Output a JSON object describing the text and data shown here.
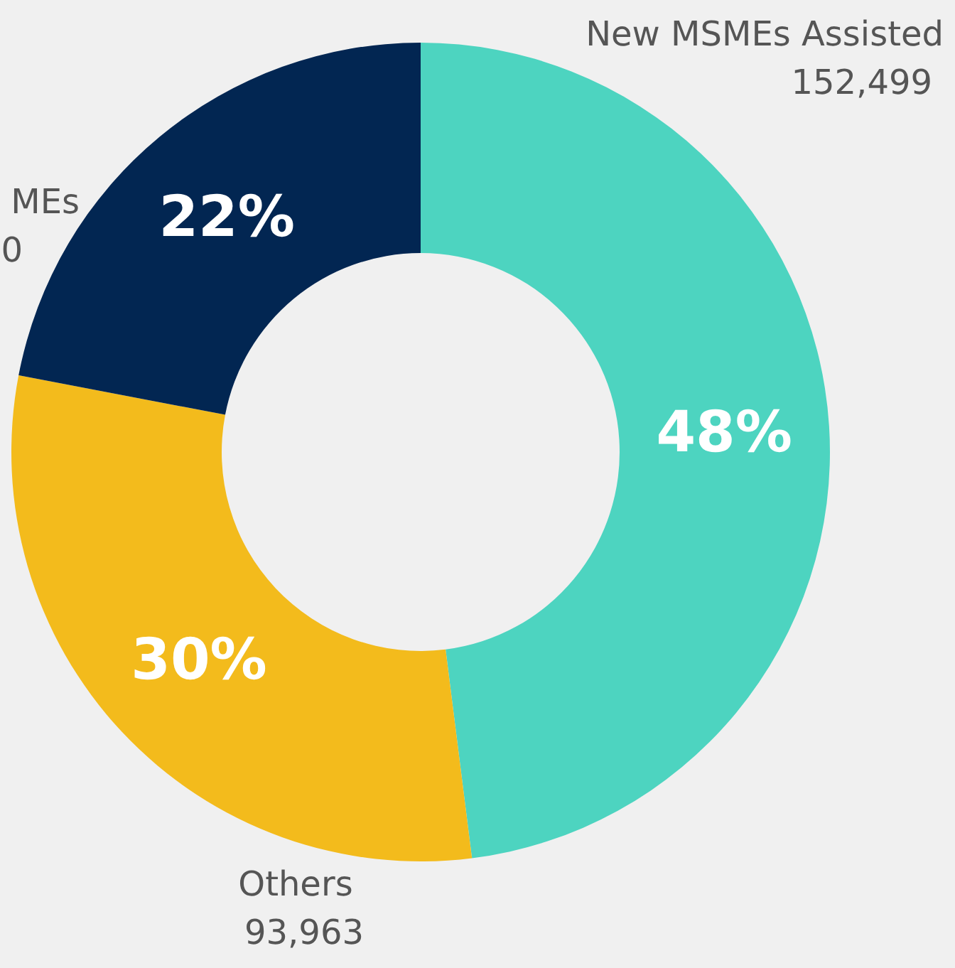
{
  "chart_data": {
    "type": "donut",
    "categories": [
      "New MSMEs Assisted",
      "Others",
      "MEs"
    ],
    "values": [
      48,
      30,
      22
    ],
    "colors": [
      "#4dd4c0",
      "#f3bb1c",
      "#022652"
    ],
    "value_labels": [
      "48%",
      "30%",
      "22%"
    ],
    "annotations": [
      "152,499",
      "93,963",
      "0"
    ]
  }
}
